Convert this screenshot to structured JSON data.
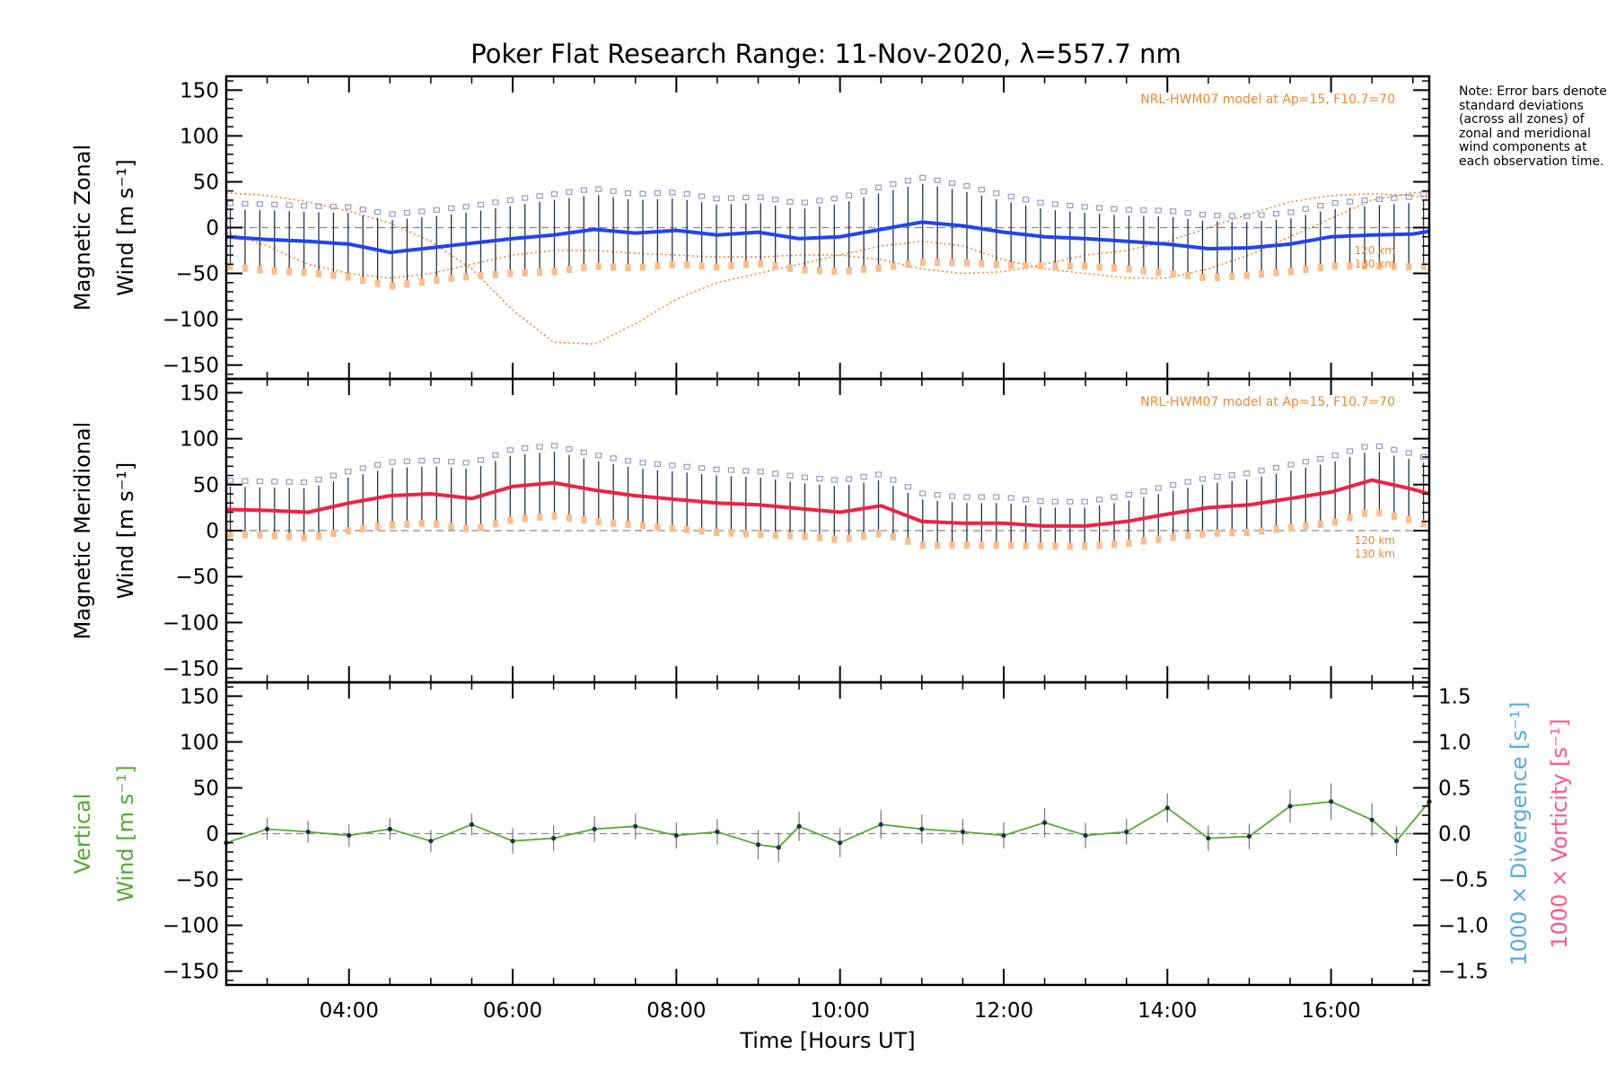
{
  "title": "Poker Flat Research Range: 11-Nov-2020, λ=557.7 nm",
  "note": "Note: Error bars denote standard deviations (across all zones) of zonal and meridional wind components at each observation time.",
  "xaxis": {
    "label": "Time [Hours UT]",
    "range": [
      2.5,
      17.2
    ],
    "ticks": [
      {
        "v": 4,
        "label": "04:00"
      },
      {
        "v": 6,
        "label": "06:00"
      },
      {
        "v": 8,
        "label": "08:00"
      },
      {
        "v": 10,
        "label": "10:00"
      },
      {
        "v": 12,
        "label": "12:00"
      },
      {
        "v": 14,
        "label": "14:00"
      },
      {
        "v": 16,
        "label": "16:00"
      }
    ]
  },
  "yticks": [
    150,
    100,
    50,
    0,
    -50,
    -100,
    -150
  ],
  "yticklabels": [
    "150",
    "100",
    "50",
    "0",
    "−50",
    "−100",
    "−150"
  ],
  "right_axis": {
    "ticks": [
      1.5,
      1.0,
      0.5,
      0.0,
      -0.5,
      -1.0,
      -1.5
    ],
    "labels": [
      "1.5",
      "1.0",
      "0.5",
      "0.0",
      "−0.5",
      "−1.0",
      "−1.5"
    ],
    "label_divergence": "1000 × Divergence [s⁻¹]",
    "label_vorticity": "1000 × Vorticity [s⁻¹]",
    "divergence_color": "#55aadd",
    "vorticity_color": "#ff5588"
  },
  "model_label": "NRL-HWM07 model at Ap=15, F10.7=70",
  "km120": "120 km",
  "km130": "130 km",
  "colors": {
    "zonal": "#2244ee",
    "meridional": "#ee2244",
    "vertical": "#55aa33",
    "model": "#ee8833",
    "zones": "#9999cc",
    "errorbar": "#223344",
    "errorbar_light": "#44aacc",
    "low_marker": "#ffbb88"
  },
  "panels": {
    "zonal": {
      "ylabel1": "Magnetic Zonal",
      "ylabel2": "Wind [m s⁻¹]"
    },
    "meridional": {
      "ylabel1": "Magnetic Meridional",
      "ylabel2": "Wind [m s⁻¹]"
    },
    "vertical": {
      "ylabel1": "Vertical",
      "ylabel2": "Wind [m s⁻¹]"
    }
  },
  "chart_data": [
    {
      "type": "line",
      "title": "",
      "ylabel": "Magnetic Zonal Wind [m s⁻¹]",
      "ylim": [
        -165,
        165
      ],
      "x": [
        2.5,
        3.0,
        3.5,
        4.0,
        4.5,
        5.0,
        5.5,
        6.0,
        6.5,
        7.0,
        7.5,
        8.0,
        8.5,
        9.0,
        9.5,
        10.0,
        10.5,
        11.0,
        11.5,
        12.0,
        12.5,
        13.0,
        13.5,
        14.0,
        14.5,
        15.0,
        15.5,
        16.0,
        16.5,
        17.0,
        17.2
      ],
      "series": [
        {
          "values": [
            -10,
            -13,
            -15,
            -18,
            -27,
            -22,
            -17,
            -12,
            -8,
            -2,
            -6,
            -3,
            -8,
            -5,
            -12,
            -10,
            -2,
            6,
            2,
            -5,
            -10,
            -12,
            -15,
            -18,
            -23,
            -22,
            -18,
            -10,
            -8,
            -7,
            -4
          ]
        }
      ],
      "error": [
        30,
        32,
        32,
        34,
        35,
        34,
        34,
        36,
        38,
        38,
        36,
        35,
        33,
        32,
        32,
        36,
        40,
        42,
        38,
        34,
        30,
        28,
        28,
        30,
        30,
        28,
        28,
        30,
        32,
        34,
        36
      ],
      "models": [
        {
          "values": [
            38,
            35,
            28,
            18,
            5,
            -15,
            -45,
            -90,
            -125,
            -127,
            -105,
            -78,
            -60,
            -50,
            -40,
            -30,
            -20,
            -15,
            -20,
            -35,
            -45,
            -50,
            -55,
            -55,
            -45,
            -30,
            -10,
            10,
            30,
            38,
            39
          ]
        },
        {
          "values": [
            -5,
            -20,
            -40,
            -50,
            -55,
            -50,
            -40,
            -30,
            -25,
            -25,
            -28,
            -30,
            -32,
            -32,
            -30,
            -30,
            -35,
            -45,
            -50,
            -48,
            -40,
            -30,
            -25,
            -15,
            0,
            15,
            28,
            35,
            37,
            35,
            32
          ]
        }
      ]
    },
    {
      "type": "line",
      "title": "",
      "ylabel": "Magnetic Meridional Wind [m s⁻¹]",
      "ylim": [
        -165,
        165
      ],
      "x": [
        2.5,
        3.0,
        3.5,
        4.0,
        4.5,
        5.0,
        5.5,
        6.0,
        6.5,
        7.0,
        7.5,
        8.0,
        8.5,
        9.0,
        9.5,
        10.0,
        10.5,
        11.0,
        11.5,
        12.0,
        12.5,
        13.0,
        13.5,
        14.0,
        14.5,
        15.0,
        15.5,
        16.0,
        16.5,
        17.0,
        17.2
      ],
      "series": [
        {
          "values": [
            23,
            22,
            20,
            30,
            38,
            40,
            35,
            48,
            52,
            44,
            38,
            34,
            30,
            28,
            24,
            20,
            27,
            10,
            8,
            8,
            5,
            5,
            10,
            18,
            25,
            28,
            35,
            42,
            55,
            45,
            40
          ]
        }
      ],
      "error": [
        25,
        25,
        26,
        28,
        30,
        30,
        32,
        34,
        34,
        32,
        30,
        30,
        30,
        30,
        28,
        28,
        28,
        24,
        22,
        22,
        20,
        20,
        22,
        24,
        26,
        28,
        30,
        32,
        32,
        32,
        32
      ]
    },
    {
      "type": "line",
      "title": "",
      "ylabel": "Vertical Wind [m s⁻¹]",
      "ylim": [
        -165,
        165
      ],
      "y2lim": [
        -1.65,
        1.65
      ],
      "x": [
        2.5,
        3.0,
        3.5,
        4.0,
        4.5,
        5.0,
        5.5,
        6.0,
        6.5,
        7.0,
        7.5,
        8.0,
        8.5,
        9.0,
        9.25,
        9.5,
        10.0,
        10.5,
        11.0,
        11.5,
        12.0,
        12.5,
        13.0,
        13.5,
        14.0,
        14.5,
        15.0,
        15.5,
        16.0,
        16.5,
        16.8,
        17.2
      ],
      "series": [
        {
          "name": "Vertical",
          "values": [
            -10,
            5,
            2,
            -2,
            5,
            -8,
            10,
            -8,
            -5,
            5,
            8,
            -2,
            2,
            -12,
            -15,
            8,
            -10,
            10,
            5,
            2,
            -2,
            12,
            -2,
            2,
            28,
            -5,
            -3,
            30,
            35,
            15,
            -8,
            35
          ]
        }
      ],
      "error": [
        12,
        12,
        12,
        12,
        12,
        12,
        12,
        14,
        14,
        14,
        14,
        14,
        14,
        16,
        16,
        16,
        16,
        16,
        16,
        14,
        14,
        16,
        14,
        14,
        16,
        14,
        14,
        18,
        20,
        18,
        16,
        18
      ]
    }
  ]
}
